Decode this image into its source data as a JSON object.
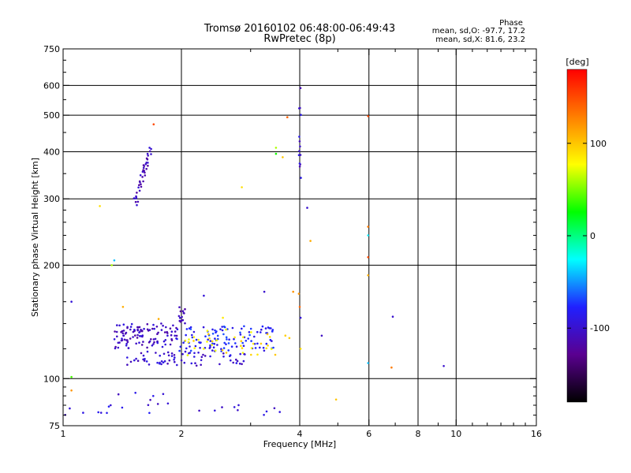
{
  "chart_data": {
    "type": "scatter",
    "title": "Tromsø 20160102 06:48:00-06:49:43",
    "subtitle": "RwPretec (8p)",
    "xlabel": "Frequency [MHz]",
    "ylabel": "Stationary phase Virtual Height [km]",
    "x_scale": "log",
    "y_scale": "log",
    "xlim": [
      1,
      16
    ],
    "ylim": [
      75,
      750
    ],
    "x_ticks": [
      1,
      2,
      4,
      6,
      8,
      10,
      16
    ],
    "x_tick_labels": [
      "1",
      "2",
      "4",
      "6",
      "8",
      "10",
      "16"
    ],
    "x_grid": [
      2,
      4,
      6,
      8,
      10
    ],
    "y_ticks": [
      75,
      100,
      200,
      300,
      400,
      500,
      600,
      750
    ],
    "y_tick_labels": [
      "75",
      "100",
      "200",
      "300",
      "400",
      "500",
      "600",
      "750"
    ],
    "y_grid": [
      100,
      200,
      300,
      400,
      500,
      600
    ],
    "grid": true,
    "stats": {
      "heading": "Phase",
      "line_o": "mean, sd,O: -97.7, 17.2",
      "line_x": "mean, sd,X: 81.6, 23.2"
    },
    "colorbar": {
      "label": "[deg]",
      "range": [
        -180,
        180
      ],
      "ticks": [
        100,
        0,
        -100
      ],
      "tick_labels": [
        "100",
        "0",
        "-100"
      ],
      "colors": [
        "#000000",
        "#5a0090",
        "#2020ff",
        "#00ffff",
        "#00ff00",
        "#ffff00",
        "#ff7f00",
        "#ff0000"
      ]
    },
    "clusters": [
      {
        "name": "band-lower",
        "x_range": [
          1.45,
          2.9
        ],
        "y_range": [
          108,
          118
        ],
        "phase": -100,
        "count": 70
      },
      {
        "name": "band-upper-left",
        "x_range": [
          1.35,
          1.95
        ],
        "y_range": [
          120,
          140
        ],
        "phase": -105,
        "count": 110
      },
      {
        "name": "band-upper-mid",
        "x_range": [
          1.95,
          3.45
        ],
        "y_range": [
          118,
          138
        ],
        "phase": -80,
        "count": 110
      },
      {
        "name": "band-yellow",
        "x_range": [
          2.0,
          3.8
        ],
        "y_range": [
          115,
          135
        ],
        "phase": 85,
        "count": 40
      },
      {
        "name": "bump-2mhz",
        "x_range": [
          1.97,
          2.05
        ],
        "y_range": [
          140,
          158
        ],
        "phase": -110,
        "count": 14
      },
      {
        "name": "spur-1.6mhz",
        "x_range": [
          1.52,
          1.67
        ],
        "y_range": [
          290,
          410
        ],
        "phase": -110,
        "count": 40
      },
      {
        "name": "cluster-85km",
        "x_range": [
          1.0,
          3.6
        ],
        "y_range": [
          80,
          92
        ],
        "phase": -95,
        "count": 28
      },
      {
        "name": "column-4mhz",
        "x_range": [
          3.98,
          4.03
        ],
        "y_range": [
          330,
          620
        ],
        "phase": -100,
        "count": 14
      }
    ],
    "points": [
      {
        "x": 1.05,
        "y": 160,
        "phase": -95
      },
      {
        "x": 1.05,
        "y": 101,
        "phase": 40
      },
      {
        "x": 1.05,
        "y": 93,
        "phase": 120
      },
      {
        "x": 1.24,
        "y": 287,
        "phase": 90
      },
      {
        "x": 1.33,
        "y": 200,
        "phase": 60
      },
      {
        "x": 1.35,
        "y": 206,
        "phase": -40
      },
      {
        "x": 1.42,
        "y": 155,
        "phase": 110
      },
      {
        "x": 1.7,
        "y": 473,
        "phase": 150
      },
      {
        "x": 1.75,
        "y": 144,
        "phase": 110
      },
      {
        "x": 2.28,
        "y": 166,
        "phase": -95
      },
      {
        "x": 2.55,
        "y": 145,
        "phase": 85
      },
      {
        "x": 2.85,
        "y": 322,
        "phase": 90
      },
      {
        "x": 3.25,
        "y": 170,
        "phase": -100
      },
      {
        "x": 3.48,
        "y": 395,
        "phase": 30
      },
      {
        "x": 3.48,
        "y": 410,
        "phase": 60
      },
      {
        "x": 3.62,
        "y": 387,
        "phase": 100
      },
      {
        "x": 3.72,
        "y": 494,
        "phase": 140
      },
      {
        "x": 3.85,
        "y": 170,
        "phase": 120
      },
      {
        "x": 3.98,
        "y": 168,
        "phase": 120
      },
      {
        "x": 4.0,
        "y": 155,
        "phase": 140
      },
      {
        "x": 4.02,
        "y": 145,
        "phase": -95
      },
      {
        "x": 4.02,
        "y": 120,
        "phase": 90
      },
      {
        "x": 4.18,
        "y": 284,
        "phase": -100
      },
      {
        "x": 4.26,
        "y": 232,
        "phase": 110
      },
      {
        "x": 4.55,
        "y": 130,
        "phase": -105
      },
      {
        "x": 4.95,
        "y": 88,
        "phase": 100
      },
      {
        "x": 5.97,
        "y": 497,
        "phase": 150
      },
      {
        "x": 5.97,
        "y": 253,
        "phase": 130
      },
      {
        "x": 5.97,
        "y": 240,
        "phase": -30
      },
      {
        "x": 5.97,
        "y": 210,
        "phase": 150
      },
      {
        "x": 5.97,
        "y": 188,
        "phase": 110
      },
      {
        "x": 5.97,
        "y": 110,
        "phase": -40
      },
      {
        "x": 6.9,
        "y": 146,
        "phase": -100
      },
      {
        "x": 6.85,
        "y": 107,
        "phase": 130
      },
      {
        "x": 9.3,
        "y": 108,
        "phase": -100
      }
    ]
  }
}
